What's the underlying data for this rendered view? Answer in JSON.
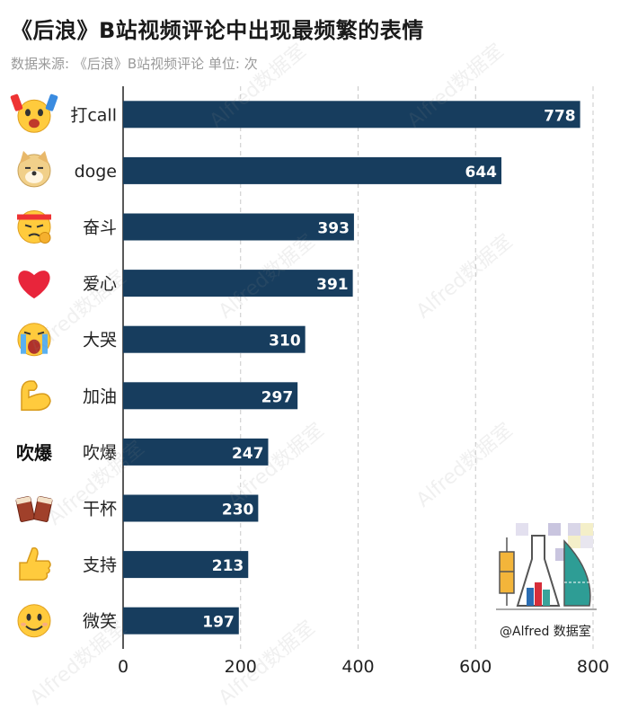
{
  "header": {
    "title": "《后浪》B站视频评论中出现最频繁的表情",
    "subtitle": "数据来源: 《后浪》B站视频评论 单位: 次"
  },
  "chart_data": {
    "type": "bar",
    "orientation": "horizontal",
    "categories": [
      "打call",
      "doge",
      "奋斗",
      "爱心",
      "大哭",
      "加油",
      "吹爆",
      "干杯",
      "支持",
      "微笑"
    ],
    "values": [
      778,
      644,
      393,
      391,
      310,
      297,
      247,
      230,
      213,
      197
    ],
    "x_ticks": [
      "0",
      "200",
      "400",
      "600",
      "800"
    ],
    "xlim": [
      0,
      800
    ],
    "grid": "vertical-dashed",
    "bar_color": "#173d5e",
    "emoji_icons": [
      "call-emoji-icon",
      "doge-emoji-icon",
      "fighting-emoji-icon",
      "heart-emoji-icon",
      "crying-emoji-icon",
      "flex-emoji-icon",
      "chuibao-emoji-icon",
      "cheers-emoji-icon",
      "thumbs-up-emoji-icon",
      "smile-emoji-icon"
    ],
    "emoji_texts": {
      "chuibao": "吹爆"
    }
  },
  "watermark": {
    "text": "Alfred数据室"
  },
  "logo": {
    "text": "@Alfred 数据室"
  }
}
